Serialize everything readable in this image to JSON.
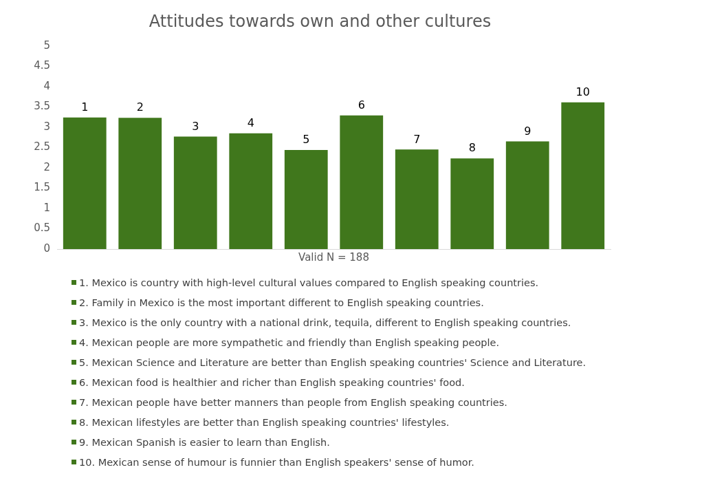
{
  "chart_data": {
    "type": "bar",
    "title": "Attitudes towards own and other cultures",
    "xlabel": "Valid N = 188",
    "categories": [
      "1",
      "2",
      "3",
      "4",
      "5",
      "6",
      "7",
      "8",
      "9",
      "10"
    ],
    "values": [
      3.24,
      3.23,
      2.77,
      2.85,
      2.44,
      3.29,
      2.45,
      2.23,
      2.65,
      3.61
    ],
    "color": "#40771c",
    "ylim": [
      0,
      5
    ],
    "yticks": [
      0,
      0.5,
      1,
      1.5,
      2,
      2.5,
      3,
      3.5,
      4,
      4.5,
      5
    ],
    "grid": false,
    "annotations": [
      "1. Mexico is country with high-level cultural values compared to English speaking countries.",
      "2. Family in Mexico is the most important different to English speaking countries.",
      "3. Mexico is the only country with a national drink, tequila, different to English speaking countries.",
      "4. Mexican people are more sympathetic and friendly than English speaking people.",
      "5. Mexican Science and Literature are better than English speaking countries' Science and Literature.",
      "6. Mexican food is healthier and richer than English speaking countries' food.",
      "7. Mexican people have better manners than people from English speaking countries.",
      "8. Mexican lifestyles are better than English speaking countries' lifestyles.",
      "9. Mexican Spanish is easier to learn than English.",
      "10. Mexican sense of humour is funnier than English speakers' sense of humor."
    ]
  }
}
